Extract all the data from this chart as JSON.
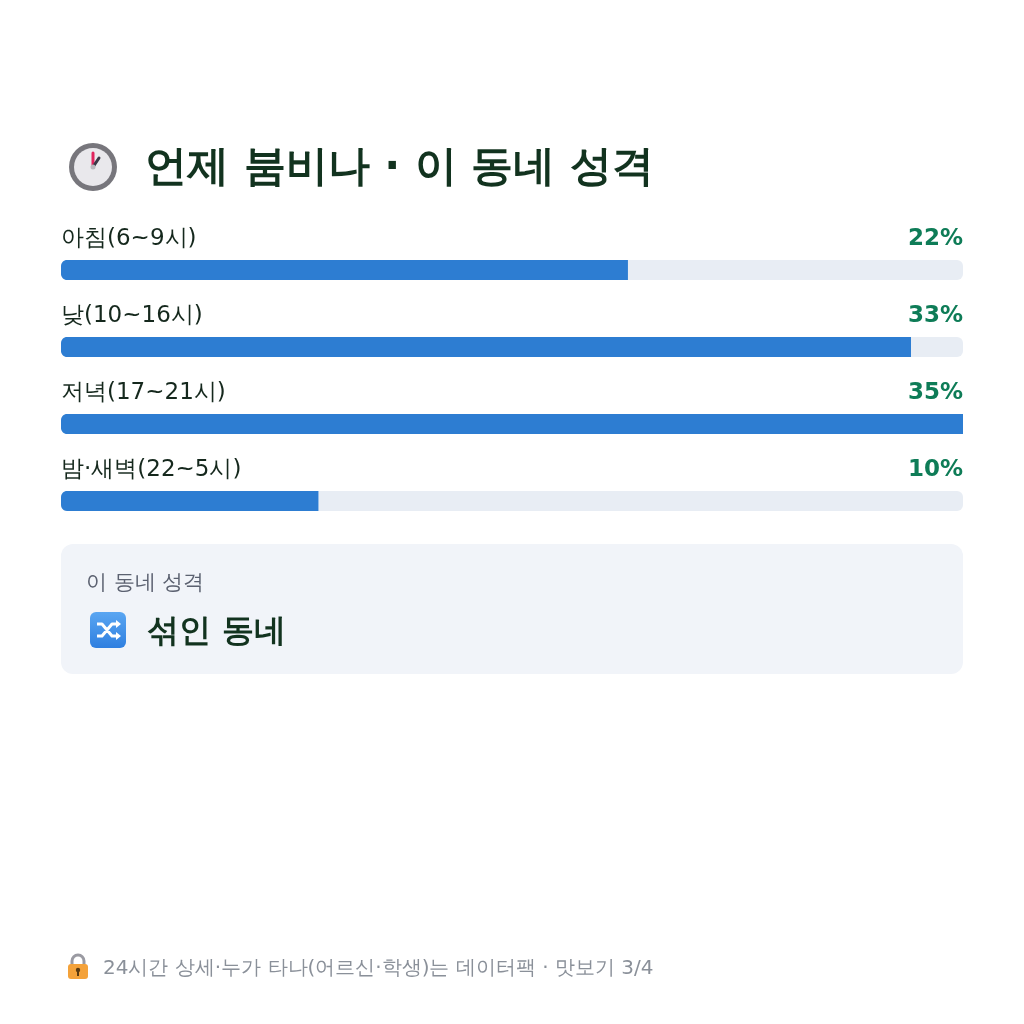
{
  "chart_data": {
    "type": "bar",
    "orientation": "horizontal",
    "title": "언제 붐비나 · 이 동네 성격",
    "categories": [
      "아침(6~9시)",
      "낮(10~16시)",
      "저녁(17~21시)",
      "밤·새벽(22~5시)"
    ],
    "values": [
      22,
      33,
      35,
      10
    ],
    "value_labels": [
      "22%",
      "33%",
      "35%",
      "10%"
    ],
    "color": "#2d7dd2",
    "xlim": [
      0,
      35
    ],
    "annotations": [
      "이 동네 성격",
      "섞인 동네",
      "24시간 상세·누가 타나(어르신·학생)는 데이터팩 · 맛보기 3/4"
    ]
  }
}
